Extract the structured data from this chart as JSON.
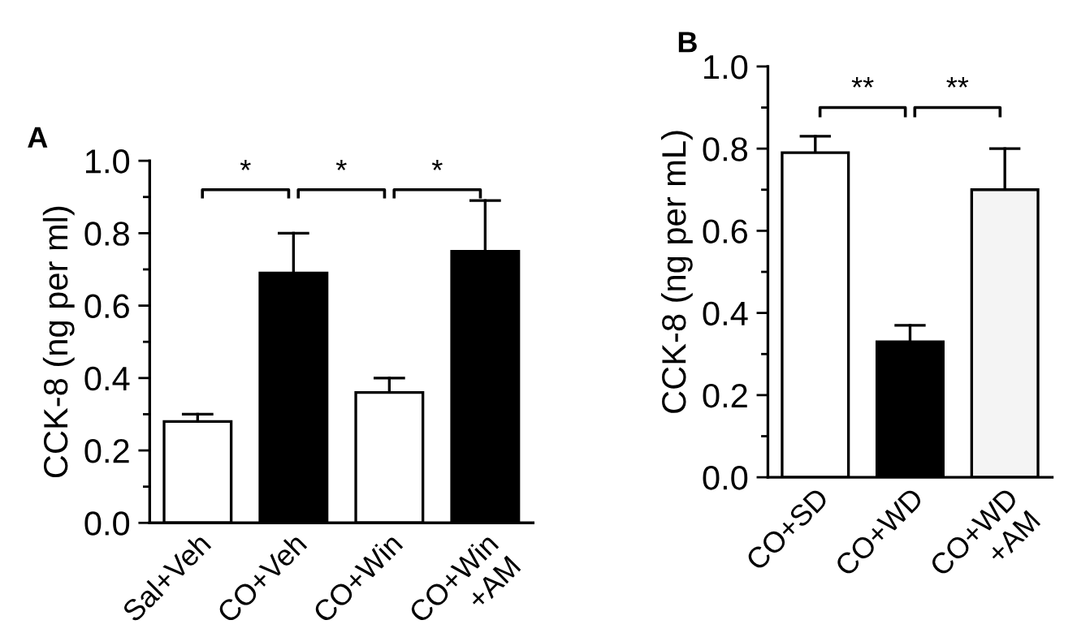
{
  "chart_data": [
    {
      "type": "bar",
      "title": "A",
      "ylabel": "CCK-8 (ng per ml)",
      "categories": [
        "Sal+Veh",
        "CO+Veh",
        "CO+Win",
        "CO+Win\n+AM"
      ],
      "values": [
        0.28,
        0.69,
        0.36,
        0.75
      ],
      "errors": [
        [
          0.28,
          0.3
        ],
        [
          0.69,
          0.8
        ],
        [
          0.36,
          0.4
        ],
        [
          0.75,
          0.89
        ]
      ],
      "colors": [
        "#ffffff",
        "#000000",
        "#ffffff",
        "#000000"
      ],
      "ylim": [
        0,
        1.0
      ],
      "yticks": [
        {
          "value": 0,
          "label": "0.0"
        },
        {
          "value": 0.1,
          "label": null
        },
        {
          "value": 0.2,
          "label": "0.2"
        },
        {
          "value": 0.3,
          "label": null
        },
        {
          "value": 0.4,
          "label": "0.4"
        },
        {
          "value": 0.5,
          "label": null
        },
        {
          "value": 0.6,
          "label": "0.6"
        },
        {
          "value": 0.7,
          "label": null
        },
        {
          "value": 0.8,
          "label": "0.8"
        },
        {
          "value": 0.9,
          "label": null
        },
        {
          "value": 1.0,
          "label": "1.0"
        }
      ],
      "annotations": [
        "*",
        "*",
        "*"
      ],
      "grid": false
    },
    {
      "type": "bar",
      "title": "B",
      "ylabel": "CCK-8 (ng per mL)",
      "categories": [
        "CO+SD",
        "CO+WD",
        "CO+WD\n+AM"
      ],
      "values": [
        0.79,
        0.33,
        0.7
      ],
      "errors": [
        [
          0.79,
          0.83
        ],
        [
          0.33,
          0.37
        ],
        [
          0.7,
          0.8
        ]
      ],
      "colors": [
        "#ffffff",
        "#000000",
        "#f4f4f4"
      ],
      "ylim": [
        0,
        1.0
      ],
      "yticks": [
        {
          "value": 0,
          "label": "0.0"
        },
        {
          "value": 0.1,
          "label": null
        },
        {
          "value": 0.2,
          "label": "0.2"
        },
        {
          "value": 0.3,
          "label": null
        },
        {
          "value": 0.4,
          "label": "0.4"
        },
        {
          "value": 0.5,
          "label": null
        },
        {
          "value": 0.6,
          "label": "0.6"
        },
        {
          "value": 0.7,
          "label": null
        },
        {
          "value": 0.8,
          "label": "0.8"
        },
        {
          "value": 0.9,
          "label": null
        },
        {
          "value": 1.0,
          "label": "1.0"
        }
      ],
      "annotations": [
        "**",
        "**"
      ],
      "grid": false
    }
  ]
}
